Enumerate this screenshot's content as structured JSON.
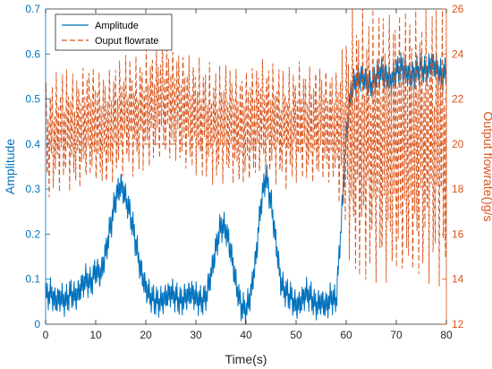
{
  "chart_data": {
    "type": "line",
    "xlabel": "Time(s)",
    "ylabel_left": "Amplitude",
    "ylabel_right": "Output flowrate()g/s",
    "xlim": [
      0,
      80
    ],
    "ylim_left": [
      0,
      0.7
    ],
    "ylim_right": [
      12,
      26
    ],
    "x_ticks": [
      "0",
      "10",
      "20",
      "30",
      "40",
      "50",
      "60",
      "70",
      "80"
    ],
    "y_ticks_left": [
      "0",
      "0.1",
      "0.2",
      "0.3",
      "0.4",
      "0.5",
      "0.6",
      "0.7"
    ],
    "y_ticks_right": [
      "12",
      "14",
      "16",
      "18",
      "20",
      "22",
      "24",
      "26"
    ],
    "grid": false,
    "legend_position": "top-left",
    "reference_line": {
      "axis": "right",
      "y": 20
    },
    "colors": {
      "left_axis": "#0072BD",
      "right_axis": "#D95319",
      "frame": "#262626"
    },
    "series": [
      {
        "name": "Amplitude",
        "axis": "left",
        "style": "solid",
        "color": "#0072BD",
        "x": [
          0,
          1,
          2,
          3,
          4,
          5,
          6,
          7,
          8,
          9,
          10,
          11,
          12,
          13,
          14,
          15,
          16,
          17,
          18,
          19,
          20,
          21,
          22,
          23,
          24,
          25,
          26,
          27,
          28,
          29,
          30,
          31,
          32,
          33,
          34,
          35,
          36,
          37,
          38,
          39,
          40,
          41,
          42,
          43,
          44,
          45,
          46,
          47,
          48,
          49,
          50,
          51,
          52,
          53,
          54,
          55,
          56,
          57,
          58,
          59,
          60,
          61,
          62,
          63,
          64,
          65,
          66,
          67,
          68,
          69,
          70,
          71,
          72,
          73,
          74,
          75,
          76,
          77,
          78,
          79,
          80
        ],
        "values": [
          0.06,
          0.07,
          0.05,
          0.06,
          0.05,
          0.07,
          0.06,
          0.08,
          0.1,
          0.09,
          0.12,
          0.11,
          0.16,
          0.22,
          0.28,
          0.31,
          0.28,
          0.24,
          0.18,
          0.12,
          0.08,
          0.06,
          0.05,
          0.05,
          0.06,
          0.07,
          0.06,
          0.05,
          0.06,
          0.07,
          0.06,
          0.05,
          0.06,
          0.11,
          0.17,
          0.22,
          0.21,
          0.16,
          0.09,
          0.04,
          0.03,
          0.07,
          0.15,
          0.27,
          0.33,
          0.27,
          0.18,
          0.09,
          0.07,
          0.06,
          0.04,
          0.05,
          0.07,
          0.06,
          0.04,
          0.05,
          0.04,
          0.06,
          0.05,
          0.22,
          0.42,
          0.52,
          0.54,
          0.55,
          0.54,
          0.53,
          0.55,
          0.56,
          0.55,
          0.54,
          0.56,
          0.57,
          0.56,
          0.55,
          0.56,
          0.57,
          0.56,
          0.58,
          0.57,
          0.55,
          0.56
        ],
        "oscillation": 0.025
      },
      {
        "name": "Ouput flowrate",
        "axis": "right",
        "style": "dashed",
        "color": "#D95319",
        "x": [
          0,
          1,
          2,
          3,
          4,
          5,
          6,
          7,
          8,
          9,
          10,
          11,
          12,
          13,
          14,
          15,
          16,
          17,
          18,
          19,
          20,
          21,
          22,
          23,
          24,
          25,
          26,
          27,
          28,
          29,
          30,
          31,
          32,
          33,
          34,
          35,
          36,
          37,
          38,
          39,
          40,
          41,
          42,
          43,
          44,
          45,
          46,
          47,
          48,
          49,
          50,
          51,
          52,
          53,
          54,
          55,
          56,
          57,
          58,
          59,
          60,
          61,
          62,
          63,
          64,
          65,
          66,
          67,
          68,
          69,
          70,
          71,
          72,
          73,
          74,
          75,
          76,
          77,
          78,
          79,
          80
        ],
        "values": [
          20,
          20.3,
          20.5,
          20.6,
          20.8,
          20.6,
          20.5,
          20.7,
          20.9,
          21,
          20.8,
          20.7,
          20.6,
          20.8,
          21,
          21.2,
          21.4,
          21.3,
          21.2,
          21.3,
          21.5,
          21.6,
          21.8,
          22,
          21.9,
          21.8,
          21.7,
          21.6,
          21.5,
          21.3,
          21.2,
          21.1,
          21,
          20.9,
          20.8,
          20.9,
          21,
          20.9,
          20.8,
          20.6,
          20.7,
          20.9,
          21,
          21.2,
          21.1,
          21,
          20.9,
          20.8,
          20.7,
          20.8,
          20.9,
          21,
          20.9,
          20.8,
          20.9,
          21,
          20.8,
          20.7,
          20.8,
          20.5,
          20.3,
          20.2,
          20.1,
          20,
          20.1,
          20,
          20.1,
          20,
          19.9,
          20,
          20.1,
          20,
          20.2,
          20.1,
          20,
          20.1,
          20,
          20.1,
          20,
          20.1,
          20
        ],
        "spread": [
          2.5,
          2.5,
          2.5,
          2.5,
          2.5,
          2.5,
          2.5,
          2.5,
          2.5,
          2.5,
          2.5,
          2.5,
          2.5,
          2.5,
          2.5,
          2.5,
          2.5,
          2.5,
          2.5,
          2.5,
          2.5,
          2.5,
          2.5,
          2.5,
          2.5,
          2.5,
          2.5,
          2.5,
          2.5,
          2.5,
          2.5,
          2.5,
          2.5,
          2.5,
          2.5,
          2.5,
          2.5,
          2.5,
          2.5,
          2.5,
          2.5,
          2.5,
          2.5,
          2.5,
          2.5,
          2.5,
          2.5,
          2.5,
          2.5,
          2.5,
          2.5,
          2.5,
          2.5,
          2.5,
          2.5,
          2.5,
          2.5,
          2.5,
          2.5,
          3.5,
          4.5,
          5.5,
          5.8,
          5.8,
          5.8,
          5.8,
          5.8,
          5.8,
          5.8,
          5.8,
          5.8,
          5.8,
          5.8,
          5.8,
          5.8,
          5.8,
          5.8,
          5.8,
          5.8,
          5.8,
          5.8
        ]
      }
    ]
  }
}
